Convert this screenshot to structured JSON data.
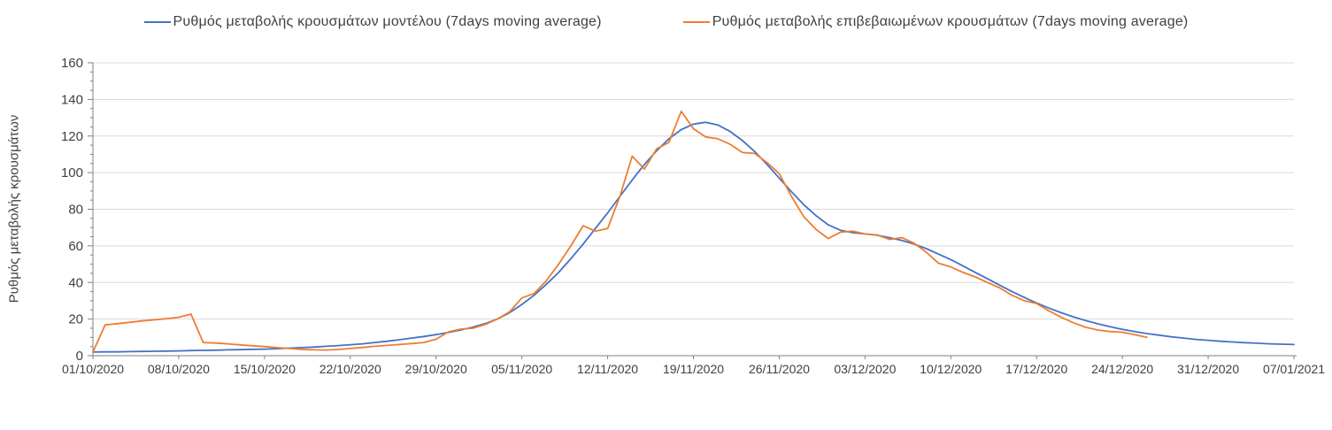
{
  "page": {
    "background": "#FFFFFF"
  },
  "legend": {
    "items": [
      {
        "label": "Ρυθμός μεταβολής κρουσμάτων μοντέλου (7days moving average)",
        "color": "#4472C4"
      },
      {
        "label": "Ρυθμός μεταβολής επιβεβαιωμένων κρουσμάτων (7days moving average)",
        "color": "#ED7D31"
      }
    ]
  },
  "chart_data": {
    "type": "line",
    "title": "",
    "xlabel": "",
    "ylabel": "Ρυθμός μεταβολής κρουσμάτων",
    "ylim": [
      0,
      160
    ],
    "y_tick_step": 20,
    "y_minor_tick_step": 5,
    "y_tick_labels": [
      "0",
      "20",
      "40",
      "60",
      "80",
      "100",
      "120",
      "140",
      "160"
    ],
    "grid": "horizontal",
    "legend_position": "top",
    "x_days_span": 98,
    "x_tick_every_days": 7,
    "x_tick_labels": [
      "01/10/2020",
      "08/10/2020",
      "15/10/2020",
      "22/10/2020",
      "29/10/2020",
      "05/11/2020",
      "12/11/2020",
      "19/11/2020",
      "26/11/2020",
      "03/12/2020",
      "10/12/2020",
      "17/12/2020",
      "24/12/2020",
      "31/12/2020",
      "07/01/2021"
    ],
    "series": [
      {
        "name": "Ρυθμός μεταβολής κρουσμάτων μοντέλου (7days moving average)",
        "color": "#4472C4",
        "start_day": 0,
        "values": [
          2.0,
          2.1,
          2.1,
          2.2,
          2.3,
          2.4,
          2.5,
          2.6,
          2.8,
          2.9,
          3.0,
          3.2,
          3.3,
          3.5,
          3.6,
          3.8,
          4.1,
          4.4,
          4.7,
          5.1,
          5.5,
          6.0,
          6.5,
          7.2,
          7.9,
          8.7,
          9.6,
          10.5,
          11.5,
          12.7,
          14.0,
          15.6,
          17.5,
          20.0,
          23.5,
          28.0,
          33.0,
          39.0,
          45.5,
          53.0,
          61.0,
          69.5,
          78.0,
          87.0,
          96.0,
          104.5,
          112.0,
          118.5,
          123.5,
          126.5,
          127.5,
          126.0,
          122.5,
          117.5,
          111.5,
          104.5,
          97.0,
          89.5,
          82.5,
          76.5,
          71.5,
          68.5,
          67.2,
          66.5,
          65.8,
          64.5,
          63.0,
          61.0,
          58.5,
          55.5,
          52.5,
          49.0,
          45.5,
          42.0,
          38.5,
          35.0,
          31.8,
          28.8,
          26.0,
          23.5,
          21.2,
          19.2,
          17.4,
          15.8,
          14.4,
          13.2,
          12.1,
          11.2,
          10.3,
          9.6,
          8.9,
          8.4,
          7.9,
          7.5,
          7.1,
          6.8,
          6.5,
          6.3,
          6.1
        ]
      },
      {
        "name": "Ρυθμός μεταβολής επιβεβαιωμένων κρουσμάτων (7days moving average)",
        "color": "#ED7D31",
        "start_day": 0,
        "values": [
          2.0,
          16.8,
          17.5,
          18.2,
          19.0,
          19.6,
          20.2,
          21.0,
          22.7,
          7.2,
          6.9,
          6.5,
          5.9,
          5.4,
          5.0,
          4.4,
          3.9,
          3.5,
          3.2,
          3.1,
          3.4,
          3.9,
          4.5,
          5.1,
          5.6,
          6.1,
          6.6,
          7.2,
          9.0,
          13.0,
          14.5,
          15.0,
          17.0,
          20.0,
          24.0,
          31.5,
          34.0,
          41.0,
          50.0,
          60.0,
          71.0,
          68.0,
          69.5,
          87.0,
          109.0,
          102.0,
          113.0,
          116.5,
          133.5,
          124.0,
          119.5,
          118.5,
          115.5,
          111.0,
          110.5,
          105.5,
          99.5,
          87.0,
          76.0,
          69.0,
          64.0,
          67.5,
          68.0,
          66.5,
          66.0,
          63.5,
          64.5,
          61.5,
          56.5,
          50.5,
          48.5,
          45.5,
          43.0,
          40.0,
          37.0,
          33.0,
          30.0,
          28.5,
          24.5,
          21.0,
          18.0,
          15.5,
          14.0,
          13.2,
          12.8,
          11.5,
          10.0
        ]
      }
    ],
    "styles": {
      "grid_color": "#D9D9D9",
      "axis_color": "#7F7F7F",
      "tick_label_color": "#404040",
      "line_width": 1.8
    }
  }
}
